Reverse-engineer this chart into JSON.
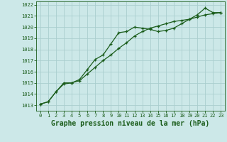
{
  "title": "Graphe pression niveau de la mer (hPa)",
  "bg_color": "#cce8e8",
  "grid_color": "#aacece",
  "line_color": "#1a5c1a",
  "xlim": [
    -0.5,
    23.5
  ],
  "ylim": [
    1012.5,
    1022.3
  ],
  "yticks": [
    1013,
    1014,
    1015,
    1016,
    1017,
    1018,
    1019,
    1020,
    1021,
    1022
  ],
  "xticks": [
    0,
    1,
    2,
    3,
    4,
    5,
    6,
    7,
    8,
    9,
    10,
    11,
    12,
    13,
    14,
    15,
    16,
    17,
    18,
    19,
    20,
    21,
    22,
    23
  ],
  "series1_x": [
    0,
    1,
    2,
    3,
    4,
    5,
    6,
    7,
    8,
    9,
    10,
    11,
    12,
    13,
    14,
    15,
    16,
    17,
    18,
    19,
    20,
    21,
    22,
    23
  ],
  "series1_y": [
    1013.1,
    1013.3,
    1014.2,
    1014.9,
    1015.0,
    1015.3,
    1016.2,
    1017.1,
    1017.5,
    1018.5,
    1019.5,
    1019.6,
    1020.0,
    1019.9,
    1019.8,
    1019.6,
    1019.7,
    1019.9,
    1020.3,
    1020.7,
    1021.1,
    1021.7,
    1021.3,
    1021.3
  ],
  "series2_x": [
    0,
    1,
    2,
    3,
    4,
    5,
    6,
    7,
    8,
    9,
    10,
    11,
    12,
    13,
    14,
    15,
    16,
    17,
    18,
    19,
    20,
    21,
    22,
    23
  ],
  "series2_y": [
    1013.1,
    1013.3,
    1014.2,
    1015.0,
    1015.0,
    1015.2,
    1015.8,
    1016.4,
    1017.0,
    1017.5,
    1018.1,
    1018.6,
    1019.2,
    1019.6,
    1019.9,
    1020.1,
    1020.3,
    1020.5,
    1020.6,
    1020.7,
    1020.9,
    1021.1,
    1021.2,
    1021.3
  ],
  "title_fontsize": 7,
  "tick_fontsize": 5,
  "ylabel_fontsize": 5
}
